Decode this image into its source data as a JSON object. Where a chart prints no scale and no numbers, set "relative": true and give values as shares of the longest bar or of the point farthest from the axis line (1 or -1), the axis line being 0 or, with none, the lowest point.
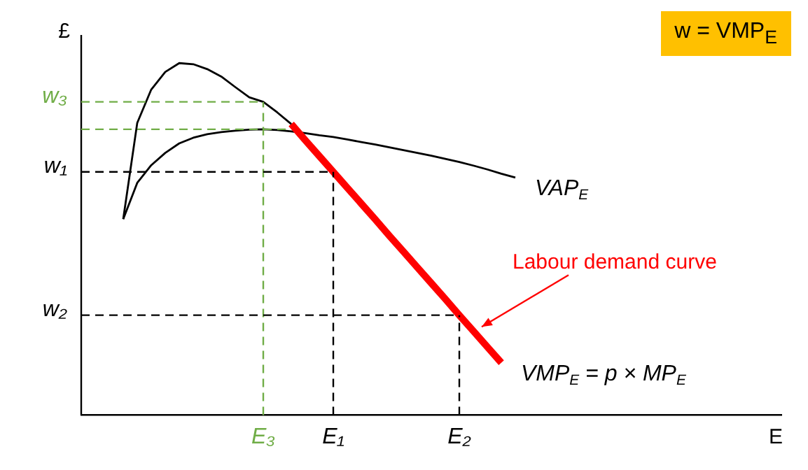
{
  "chart_data": {
    "type": "line",
    "relative": true,
    "ylabel": "£",
    "xlabel": "E",
    "legend": false,
    "grid": false,
    "marker": "none",
    "categories": [
      null,
      null,
      null,
      null,
      null,
      null,
      null,
      null,
      null,
      null,
      null,
      null,
      null,
      "E₃",
      null,
      null,
      null,
      null,
      "E₁",
      null,
      null,
      null,
      null,
      null,
      null,
      null,
      null,
      "E₂",
      null,
      null,
      null,
      null,
      null,
      null,
      null,
      null,
      null,
      null,
      null,
      null,
      null,
      null,
      null,
      null,
      null,
      null,
      null,
      null,
      null,
      null,
      null
    ],
    "series": [
      {
        "values": [
          null,
          null,
          null,
          0.557,
          0.83,
          0.925,
          0.975,
          1,
          0.997,
          0.983,
          0.962,
          0.932,
          0.903,
          0.89,
          0.86,
          0.827,
          null,
          null,
          null,
          null,
          null,
          null,
          null,
          null,
          null,
          null,
          null,
          null,
          null,
          null,
          null,
          null,
          null,
          null,
          null,
          null,
          null,
          null,
          null,
          null,
          null,
          null,
          null,
          null,
          null,
          null,
          null,
          null,
          null,
          null,
          null
        ],
        "color": "#000000"
      },
      {
        "name": "VMP$_{E}$ = p × MP$_{E}$",
        "values": [
          null,
          null,
          null,
          null,
          null,
          null,
          null,
          null,
          null,
          null,
          null,
          null,
          null,
          null,
          null,
          0.827,
          0.781,
          0.736,
          0.691,
          0.646,
          0.601,
          0.556,
          0.51,
          0.465,
          0.42,
          0.375,
          0.33,
          0.284,
          0.239,
          0.194,
          0.149,
          null,
          null,
          null,
          null,
          null,
          null,
          null,
          null,
          null,
          null,
          null,
          null,
          null,
          null,
          null,
          null,
          null,
          null,
          null,
          null
        ],
        "color": "#ff0000"
      },
      {
        "name": "VAP$_{E}$",
        "values": [
          null,
          null,
          null,
          0.557,
          0.66,
          0.71,
          0.745,
          0.772,
          0.788,
          0.798,
          0.804,
          0.808,
          0.811,
          0.812,
          0.81,
          0.806,
          0.801,
          0.795,
          0.79,
          0.783,
          0.776,
          0.769,
          0.761,
          0.753,
          0.745,
          0.737,
          0.728,
          0.719,
          0.709,
          0.698,
          0.686,
          0.675,
          null,
          null,
          null,
          null,
          null,
          null,
          null,
          null,
          null,
          null,
          null,
          null,
          null,
          null,
          null,
          null,
          null,
          null,
          null
        ],
        "color": "#000000"
      }
    ],
    "ref_lines": [
      {
        "axis": "y",
        "value": 0.89,
        "label": "w₃",
        "color": "#70ad47",
        "line_style": "dashed"
      },
      {
        "axis": "x",
        "value": "E₃",
        "color": "#70ad47",
        "line_style": "dashed"
      },
      {
        "axis": "y",
        "value": 0.691,
        "label": "w₁",
        "color": "#000000",
        "line_style": "dashed"
      },
      {
        "axis": "x",
        "value": "E₁",
        "color": "#000000",
        "line_style": "dashed"
      },
      {
        "axis": "y",
        "value": 0.284,
        "label": "w₂",
        "color": "#000000",
        "line_style": "dashed"
      },
      {
        "axis": "x",
        "value": "E₂",
        "color": "#000000",
        "line_style": "dashed"
      },
      {
        "axis": "y",
        "value": 0.812,
        "color": "#70ad47",
        "line_style": "dashed"
      }
    ],
    "annotations": [
      "w = VMP$_{E}$",
      "Labour demand curve"
    ]
  }
}
